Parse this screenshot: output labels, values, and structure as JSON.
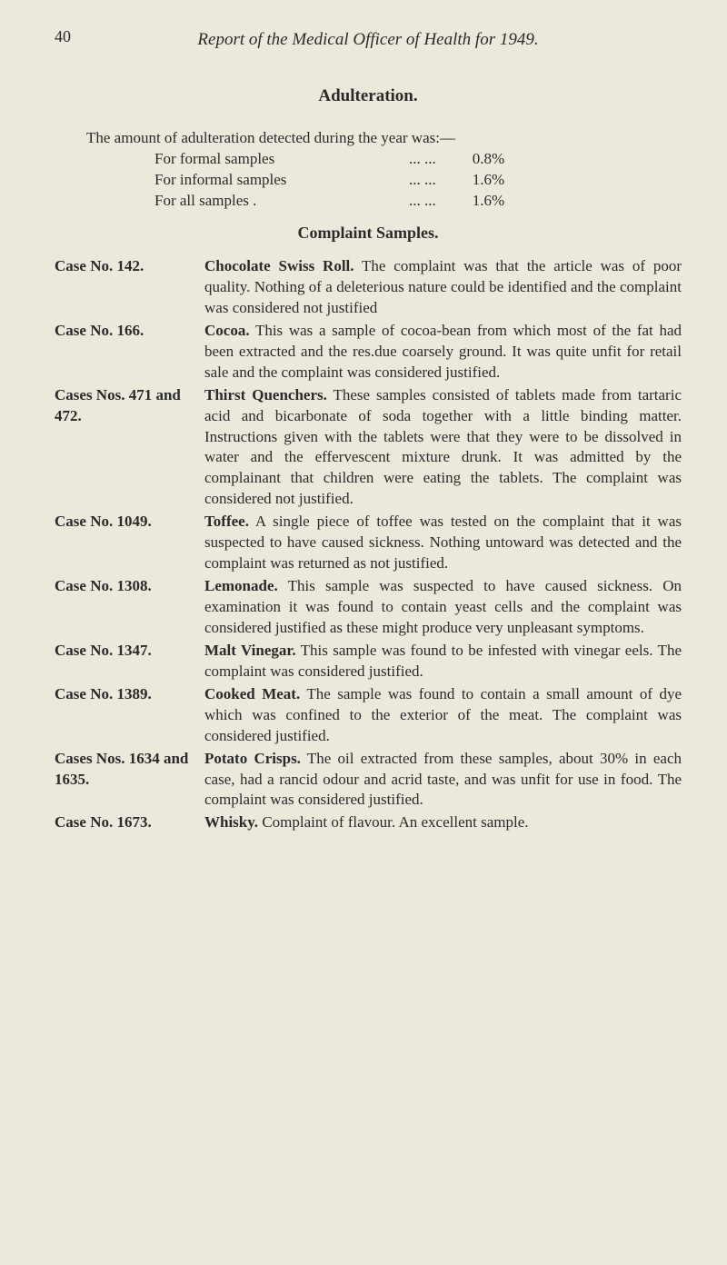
{
  "page_number": "40",
  "header": "Report of the Medical Officer of Health for 1949.",
  "section_title": "Adulteration.",
  "intro": "The amount of adulteration detected during the year was:—",
  "samples": [
    {
      "label": "For formal samples",
      "dots": "...     ...",
      "value": "0.8%"
    },
    {
      "label": "For informal samples",
      "dots": "...    ...",
      "value": "1.6%"
    },
    {
      "label": "For all samples  .",
      "dots": "...     ...",
      "value": "1.6%"
    }
  ],
  "subsection_title": "Complaint Samples.",
  "cases": [
    {
      "label": "Case No. 142.",
      "title": "Chocolate Swiss Roll.",
      "text": " The complaint was that the article was of poor quality. Nothing of a deleterious nature could be identified and the complaint was considered not justified"
    },
    {
      "label": "Case No. 166.",
      "title": "Cocoa.",
      "text": " This was a sample of cocoa-bean from which most of the fat had been extracted and the res.due coarsely ground. It was quite unfit for retail sale and the complaint was considered justified."
    },
    {
      "label": "Cases Nos. 471 and 472.",
      "title": "Thirst Quenchers.",
      "text": " These samples consisted of tablets made from tartaric acid and bicarbonate of soda together with a little binding matter. Instructions given with the tablets were that they were to be dissolved in water and the effervescent mixture drunk. It was admitted by the complainant that children were eating the tablets. The complaint was considered not justified."
    },
    {
      "label": "Case No. 1049.",
      "title": "Toffee.",
      "text": " A single piece of toffee was tested on the complaint that it was suspected to have caused sickness. Nothing untoward was detected and the complaint was returned as not justified."
    },
    {
      "label": "Case No. 1308.",
      "title": "Lemonade.",
      "text": " This sample was suspected to have caused sickness. On examination it was found to contain yeast cells and the complaint was considered justified as these might produce very unpleasant symptoms."
    },
    {
      "label": "Case No. 1347.",
      "title": "Malt Vinegar.",
      "text": " This sample was found to be infested with vinegar eels. The complaint was considered justified."
    },
    {
      "label": "Case No. 1389.",
      "title": "Cooked Meat.",
      "text": " The sample was found to contain a small amount of dye which was confined to the exterior of the meat. The complaint was considered justified."
    },
    {
      "label": "Cases Nos. 1634 and 1635.",
      "title": "Potato Crisps.",
      "text": " The oil extracted from these samples, about 30% in each case, had a rancid odour and acrid taste, and was unfit for use in food. The complaint was considered justified."
    },
    {
      "label": "Case No. 1673.",
      "title": "Whisky.",
      "text": " Complaint of flavour. An excellent sample."
    }
  ]
}
